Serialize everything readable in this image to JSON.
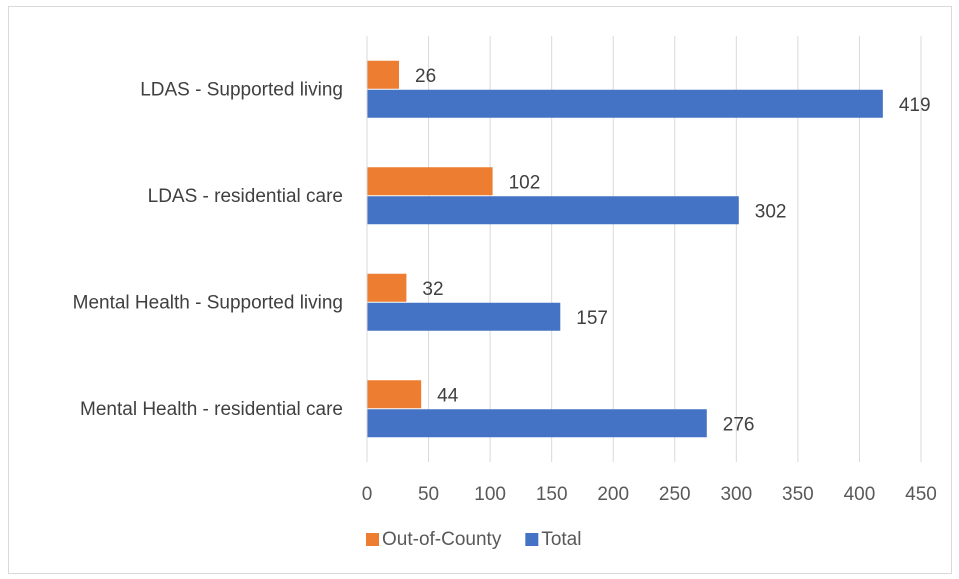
{
  "chart_data": {
    "type": "bar",
    "orientation": "horizontal",
    "categories": [
      "LDAS - Supported living",
      "LDAS - residential care",
      "Mental Health - Supported living",
      "Mental Health - residential care"
    ],
    "series": [
      {
        "name": "Out-of-County",
        "color": "#ed7d31",
        "values": [
          26,
          102,
          32,
          44
        ]
      },
      {
        "name": "Total",
        "color": "#4472c4",
        "values": [
          419,
          302,
          157,
          276
        ]
      }
    ],
    "title": "",
    "xlabel": "",
    "ylabel": "",
    "xlim": [
      0,
      450
    ],
    "x_ticks": [
      0,
      50,
      100,
      150,
      200,
      250,
      300,
      350,
      400,
      450
    ],
    "grid": "vertical",
    "legend": "bottom",
    "data_labels": true
  }
}
